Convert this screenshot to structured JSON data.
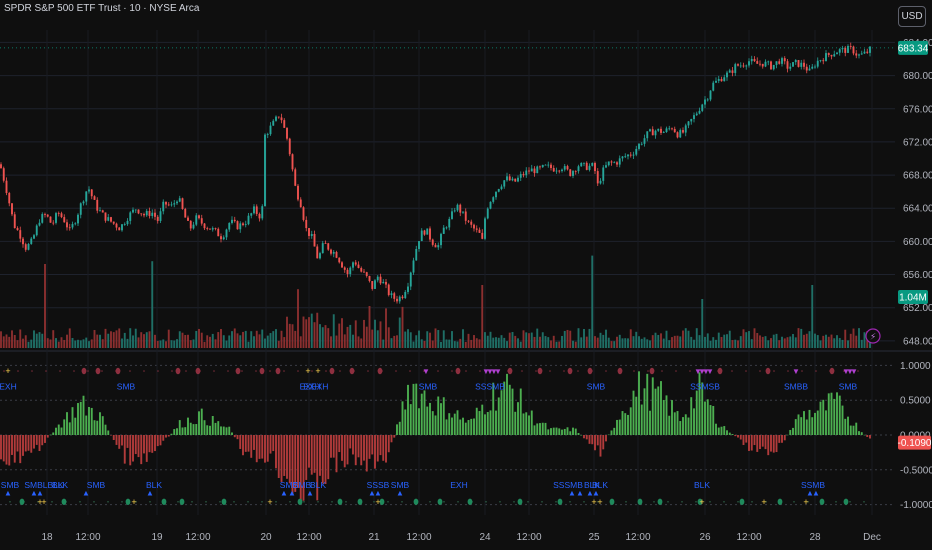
{
  "header": {
    "title": "SPDR S&P 500 ETF Trust · 10 · NYSE Arca",
    "currency_button": "USD"
  },
  "colors": {
    "up": "#26a69a",
    "down": "#ef5350",
    "background": "#0f0f0f",
    "grid": "#1e222d",
    "hist_up": "#4caf50",
    "hist_down": "#b23b3b",
    "label_blue": "#2962ff",
    "last_price_tag": "#089981",
    "marker_purple": "#9c27b0",
    "marker_yellow": "#ffd54f"
  },
  "chart_data": [
    {
      "type": "candlestick",
      "title": "",
      "y_axis_ticks": [
        "684.00",
        "680.00",
        "676.00",
        "672.00",
        "668.00",
        "664.00",
        "660.00",
        "656.00",
        "652.00",
        "648.00"
      ],
      "ylim": [
        647.5,
        685.5
      ],
      "price_keypoints": [
        [
          0,
          669.3
        ],
        [
          6,
          666.5
        ],
        [
          14,
          662.0
        ],
        [
          20,
          660.8
        ],
        [
          26,
          659.2
        ],
        [
          32,
          660.0
        ],
        [
          40,
          662.8
        ],
        [
          46,
          663.2
        ],
        [
          52,
          662.0
        ],
        [
          58,
          663.5
        ],
        [
          64,
          662.6
        ],
        [
          70,
          661.2
        ],
        [
          76,
          662.8
        ],
        [
          82,
          664.8
        ],
        [
          88,
          666.6
        ],
        [
          96,
          664.2
        ],
        [
          104,
          663.0
        ],
        [
          112,
          662.3
        ],
        [
          120,
          661.6
        ],
        [
          128,
          663.0
        ],
        [
          136,
          664.0
        ],
        [
          144,
          663.2
        ],
        [
          152,
          663.5
        ],
        [
          158,
          662.5
        ],
        [
          164,
          664.6
        ],
        [
          172,
          664.2
        ],
        [
          178,
          665.4
        ],
        [
          184,
          663.2
        ],
        [
          190,
          661.5
        ],
        [
          196,
          662.8
        ],
        [
          204,
          662.0
        ],
        [
          214,
          661.3
        ],
        [
          222,
          660.5
        ],
        [
          230,
          662.4
        ],
        [
          238,
          661.8
        ],
        [
          246,
          662.4
        ],
        [
          254,
          663.8
        ],
        [
          262,
          662.8
        ],
        [
          264,
          672.6
        ],
        [
          272,
          674.0
        ],
        [
          280,
          675.4
        ],
        [
          288,
          672.0
        ],
        [
          292,
          669.0
        ],
        [
          296,
          666.0
        ],
        [
          300,
          665.0
        ],
        [
          306,
          661.5
        ],
        [
          312,
          660.4
        ],
        [
          318,
          657.8
        ],
        [
          324,
          659.8
        ],
        [
          330,
          659.0
        ],
        [
          336,
          658.5
        ],
        [
          342,
          657.2
        ],
        [
          348,
          656.0
        ],
        [
          354,
          657.8
        ],
        [
          360,
          656.5
        ],
        [
          366,
          655.8
        ],
        [
          372,
          654.4
        ],
        [
          378,
          655.8
        ],
        [
          384,
          654.8
        ],
        [
          390,
          653.5
        ],
        [
          396,
          653.0
        ],
        [
          402,
          653.4
        ],
        [
          408,
          655.0
        ],
        [
          414,
          658.2
        ],
        [
          420,
          660.8
        ],
        [
          426,
          661.4
        ],
        [
          432,
          660.0
        ],
        [
          438,
          659.4
        ],
        [
          444,
          661.6
        ],
        [
          450,
          662.6
        ],
        [
          456,
          664.4
        ],
        [
          462,
          663.4
        ],
        [
          468,
          662.2
        ],
        [
          474,
          661.5
        ],
        [
          480,
          660.8
        ],
        [
          482,
          659.8
        ],
        [
          486,
          663.8
        ],
        [
          492,
          665.4
        ],
        [
          498,
          666.5
        ],
        [
          506,
          667.6
        ],
        [
          514,
          667.1
        ],
        [
          522,
          668.0
        ],
        [
          530,
          668.6
        ],
        [
          538,
          668.6
        ],
        [
          546,
          669.0
        ],
        [
          554,
          668.8
        ],
        [
          562,
          669.0
        ],
        [
          570,
          668.2
        ],
        [
          578,
          669.2
        ],
        [
          586,
          669.0
        ],
        [
          594,
          669.1
        ],
        [
          598,
          666.6
        ],
        [
          602,
          668.3
        ],
        [
          608,
          669.4
        ],
        [
          616,
          669.5
        ],
        [
          624,
          670.2
        ],
        [
          632,
          670.6
        ],
        [
          640,
          671.8
        ],
        [
          648,
          673.0
        ],
        [
          656,
          673.4
        ],
        [
          664,
          673.2
        ],
        [
          672,
          673.8
        ],
        [
          678,
          672.9
        ],
        [
          684,
          673.2
        ],
        [
          690,
          674.4
        ],
        [
          696,
          675.4
        ],
        [
          702,
          676.6
        ],
        [
          708,
          677.6
        ],
        [
          712,
          678.9
        ],
        [
          718,
          679.4
        ],
        [
          724,
          680.0
        ],
        [
          730,
          680.3
        ],
        [
          736,
          681.2
        ],
        [
          742,
          681.3
        ],
        [
          748,
          681.8
        ],
        [
          756,
          681.4
        ],
        [
          764,
          681.5
        ],
        [
          772,
          681.1
        ],
        [
          780,
          681.9
        ],
        [
          788,
          681.0
        ],
        [
          796,
          681.5
        ],
        [
          804,
          681.2
        ],
        [
          810,
          680.4
        ],
        [
          816,
          681.6
        ],
        [
          822,
          682.1
        ],
        [
          830,
          682.6
        ],
        [
          838,
          683.0
        ],
        [
          846,
          683.1
        ],
        [
          852,
          683.2
        ],
        [
          858,
          682.4
        ],
        [
          864,
          682.6
        ],
        [
          868,
          682.9
        ],
        [
          872,
          683.34
        ]
      ],
      "volume_label": "1.04M",
      "last_price": "683.34"
    },
    {
      "type": "histogram",
      "title": "",
      "y_axis_ticks": [
        "1.0000",
        "0.5000",
        "0.0000",
        "-0.5000",
        "-1.0000"
      ],
      "ylim": [
        -1.15,
        1.15
      ],
      "last_value": "-0.1090",
      "label_texts": [
        "EXH",
        "SMB",
        "EXEXH",
        "EXH",
        "SMB",
        "SSSMB",
        "SMB",
        "SSMSB",
        "SMBB",
        "SMB",
        "SMBLBLK",
        "BLK",
        "SMB",
        "SMB",
        "BLK",
        "SMB",
        "SMB",
        "BLK",
        "SMB",
        "EXH",
        "SSSB",
        "SSSMB",
        "BLK",
        "BLK",
        "BLK",
        "SSMB"
      ]
    }
  ],
  "x_axis": {
    "labels": [
      {
        "text": "18",
        "x": 47
      },
      {
        "text": "12:00",
        "x": 88
      },
      {
        "text": "19",
        "x": 157
      },
      {
        "text": "12:00",
        "x": 198
      },
      {
        "text": "20",
        "x": 266
      },
      {
        "text": "12:00",
        "x": 309
      },
      {
        "text": "21",
        "x": 374
      },
      {
        "text": "12:00",
        "x": 419
      },
      {
        "text": "24",
        "x": 485
      },
      {
        "text": "12:00",
        "x": 529
      },
      {
        "text": "25",
        "x": 594
      },
      {
        "text": "12:00",
        "x": 638
      },
      {
        "text": "26",
        "x": 705
      },
      {
        "text": "12:00",
        "x": 749
      },
      {
        "text": "28",
        "x": 815
      },
      {
        "text": "Dec",
        "x": 872
      }
    ]
  }
}
